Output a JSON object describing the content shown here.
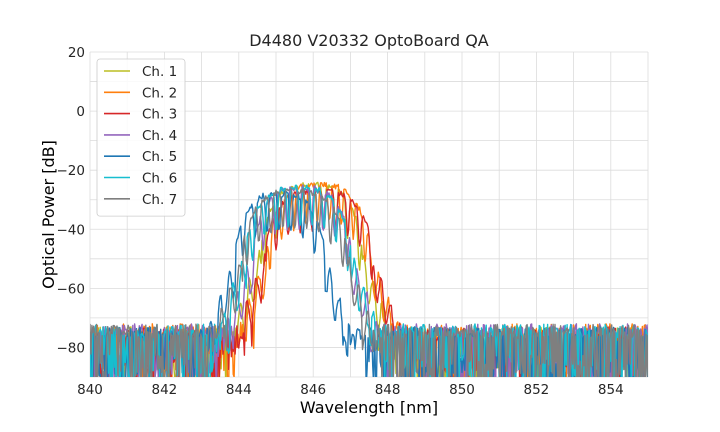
{
  "chart_data": {
    "type": "line",
    "title": "D4480 V20332 OptoBoard QA",
    "xlabel": "Wavelength [nm]",
    "ylabel": "Optical Power [dB]",
    "xlim": [
      840,
      855
    ],
    "ylim": [
      -90,
      20
    ],
    "x_ticks": [
      840,
      842,
      844,
      846,
      848,
      850,
      852,
      854
    ],
    "y_ticks": [
      20,
      0,
      -20,
      -40,
      -60,
      -80
    ],
    "x_tick_labels": [
      "840",
      "842",
      "844",
      "846",
      "848",
      "850",
      "852",
      "854"
    ],
    "y_tick_labels": [
      "20",
      "0",
      "−20",
      "−40",
      "−60",
      "−80"
    ],
    "grid": true,
    "legend_position": "top-left",
    "noise_floor_db": -80,
    "series": [
      {
        "name": "Ch. 1",
        "color": "#bcbd22",
        "band_nm": [
          844.6,
          847.3
        ],
        "peak_db": -26,
        "floor_db": -73
      },
      {
        "name": "Ch. 2",
        "color": "#ff7f0e",
        "band_nm": [
          844.8,
          847.5
        ],
        "peak_db": -26,
        "floor_db": -72
      },
      {
        "name": "Ch. 3",
        "color": "#d62728",
        "band_nm": [
          844.7,
          847.6
        ],
        "peak_db": -28,
        "floor_db": -73
      },
      {
        "name": "Ch. 4",
        "color": "#9467bd",
        "band_nm": [
          844.4,
          847.0
        ],
        "peak_db": -27,
        "floor_db": -72
      },
      {
        "name": "Ch. 5",
        "color": "#1f77b4",
        "band_nm": [
          843.9,
          846.3
        ],
        "peak_db": -29,
        "floor_db": -73
      },
      {
        "name": "Ch. 6",
        "color": "#17becf",
        "band_nm": [
          844.2,
          847.0
        ],
        "peak_db": -27,
        "floor_db": -72
      },
      {
        "name": "Ch. 7",
        "color": "#7f7f7f",
        "band_nm": [
          844.1,
          846.9
        ],
        "peak_db": -28,
        "floor_db": -72
      }
    ]
  }
}
